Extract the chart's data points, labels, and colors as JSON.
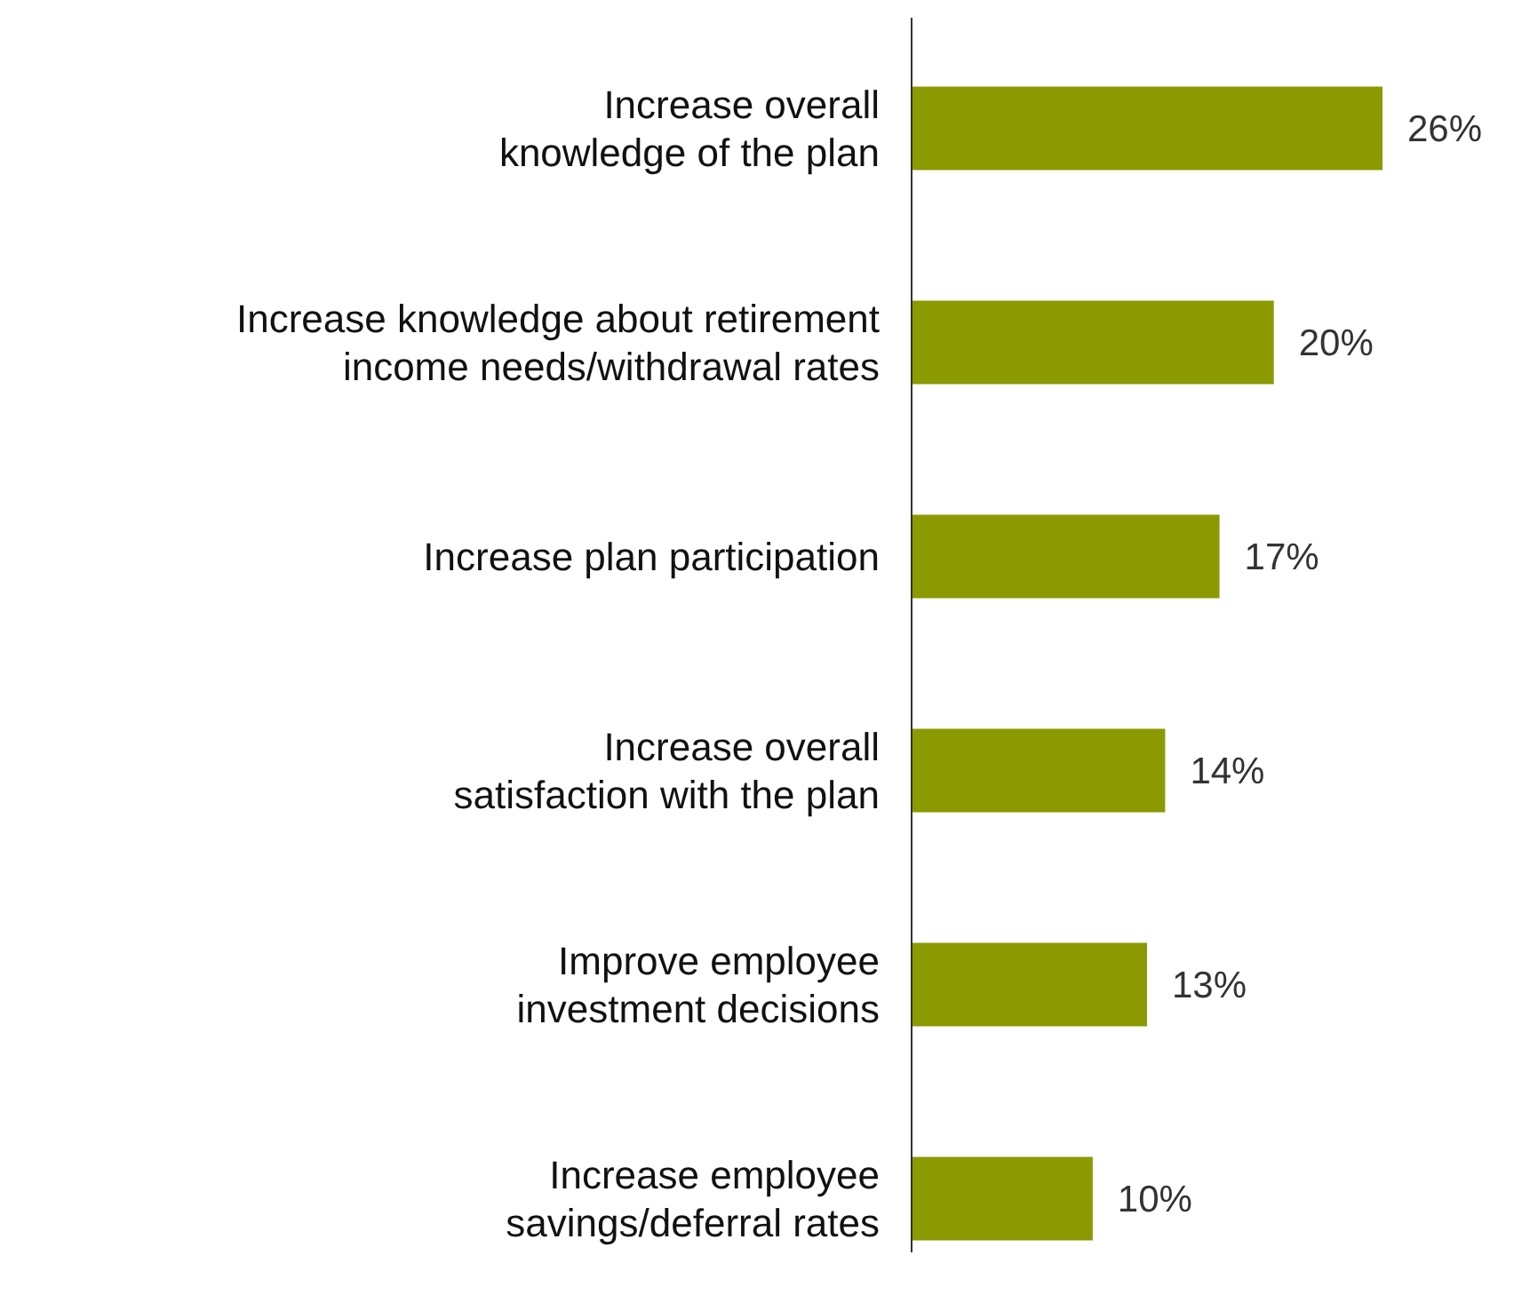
{
  "chart_data": {
    "type": "bar",
    "orientation": "horizontal",
    "categories": [
      "Increase overall\nknowledge of the plan",
      "Increase knowledge about retirement\nincome needs/withdrawal rates",
      "Increase plan participation",
      "Increase overall\nsatisfaction with the plan",
      "Improve employee\ninvestment decisions",
      "Increase employee\nsavings/deferral rates"
    ],
    "values": [
      26,
      20,
      17,
      14,
      13,
      10
    ],
    "color": "#8a9a00",
    "data_labels": true,
    "value_labels": [
      "26%",
      "20%",
      "17%",
      "14%",
      "13%",
      "10%"
    ]
  }
}
